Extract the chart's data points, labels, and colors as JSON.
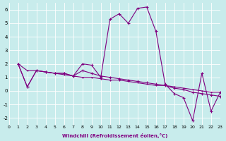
{
  "xlabel": "Windchill (Refroidissement éolien,°C)",
  "ylabel": "",
  "bg_color": "#c8ecec",
  "line_color": "#800080",
  "grid_color": "#ffffff",
  "xlim": [
    0,
    23
  ],
  "ylim": [
    -2.5,
    6.5
  ],
  "xticks": [
    0,
    1,
    2,
    3,
    4,
    5,
    6,
    7,
    8,
    9,
    10,
    11,
    12,
    13,
    14,
    15,
    16,
    17,
    18,
    19,
    20,
    21,
    22,
    23
  ],
  "yticks": [
    -2,
    -1,
    0,
    1,
    2,
    3,
    4,
    5,
    6
  ],
  "series": [
    [
      2.0,
      0.3,
      1.5,
      1.4,
      1.3,
      1.3,
      1.1,
      2.0,
      1.9,
      1.0,
      5.3,
      5.7,
      5.0,
      6.1,
      6.2,
      4.4,
      0.5,
      -0.2,
      -0.5,
      -2.2,
      1.3,
      -1.5,
      -0.1
    ],
    [
      2.0,
      0.3,
      1.5,
      1.4,
      1.3,
      1.3,
      1.1,
      1.5,
      1.3,
      1.1,
      1.0,
      0.9,
      0.8,
      0.7,
      0.6,
      0.5,
      0.4,
      0.2,
      0.1,
      -0.1,
      -0.2,
      -0.3,
      -0.4
    ],
    [
      2.0,
      1.5,
      1.5,
      1.4,
      1.3,
      1.2,
      1.1,
      1.0,
      1.0,
      0.9,
      0.8,
      0.8,
      0.7,
      0.6,
      0.5,
      0.4,
      0.4,
      0.3,
      0.2,
      0.1,
      0.0,
      -0.1,
      -0.1
    ]
  ]
}
